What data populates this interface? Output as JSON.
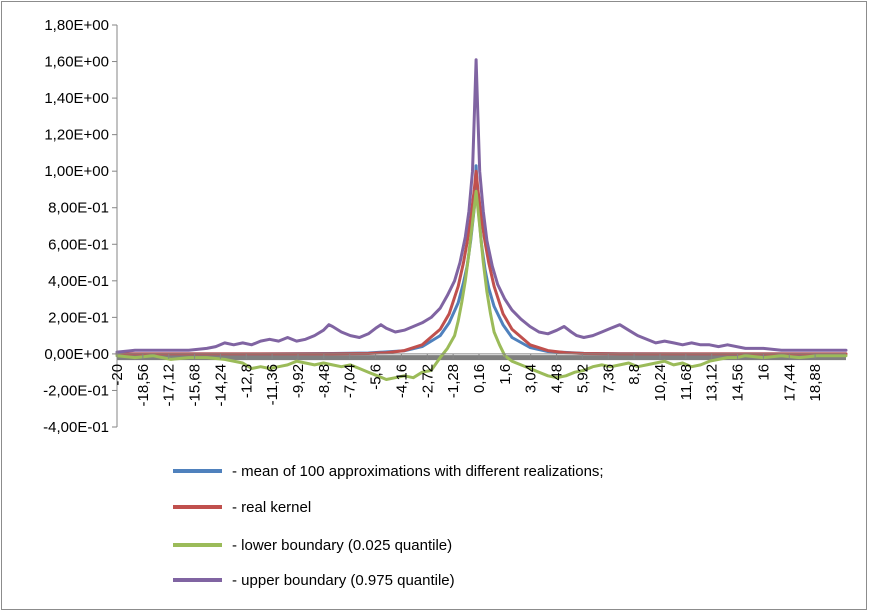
{
  "chart_data": {
    "type": "line",
    "title": "",
    "xlabel": "",
    "ylabel": "",
    "xlim": [
      -20,
      20.6
    ],
    "ylim": [
      -0.4,
      1.8
    ],
    "y_ticks": [
      {
        "value": 1.8,
        "label": "1,80E+00"
      },
      {
        "value": 1.6,
        "label": "1,60E+00"
      },
      {
        "value": 1.4,
        "label": "1,40E+00"
      },
      {
        "value": 1.2,
        "label": "1,20E+00"
      },
      {
        "value": 1.0,
        "label": "1,00E+00"
      },
      {
        "value": 0.8,
        "label": "8,00E-01"
      },
      {
        "value": 0.6,
        "label": "6,00E-01"
      },
      {
        "value": 0.4,
        "label": "4,00E-01"
      },
      {
        "value": 0.2,
        "label": "2,00E-01"
      },
      {
        "value": 0.0,
        "label": "0,00E+00"
      },
      {
        "value": -0.2,
        "label": "-2,00E-01"
      },
      {
        "value": -0.4,
        "label": "-4,00E-01"
      }
    ],
    "x_ticks": [
      {
        "value": -20,
        "label": "-20"
      },
      {
        "value": -18.56,
        "label": "-18,56"
      },
      {
        "value": -17.12,
        "label": "-17,12"
      },
      {
        "value": -15.68,
        "label": "-15,68"
      },
      {
        "value": -14.24,
        "label": "-14,24"
      },
      {
        "value": -12.8,
        "label": "-12,8"
      },
      {
        "value": -11.36,
        "label": "-11,36"
      },
      {
        "value": -9.92,
        "label": "-9,92"
      },
      {
        "value": -8.48,
        "label": "-8,48"
      },
      {
        "value": -7.04,
        "label": "-7,04"
      },
      {
        "value": -5.6,
        "label": "-5,6"
      },
      {
        "value": -4.16,
        "label": "-4,16"
      },
      {
        "value": -2.72,
        "label": "-2,72"
      },
      {
        "value": -1.28,
        "label": "-1,28"
      },
      {
        "value": 0.16,
        "label": "0,16"
      },
      {
        "value": 1.6,
        "label": "1,6"
      },
      {
        "value": 3.04,
        "label": "3,04"
      },
      {
        "value": 4.48,
        "label": "4,48"
      },
      {
        "value": 5.92,
        "label": "5,92"
      },
      {
        "value": 7.36,
        "label": "7,36"
      },
      {
        "value": 8.8,
        "label": "8,8"
      },
      {
        "value": 10.24,
        "label": "10,24"
      },
      {
        "value": 11.68,
        "label": "11,68"
      },
      {
        "value": 13.12,
        "label": "13,12"
      },
      {
        "value": 14.56,
        "label": "14,56"
      },
      {
        "value": 16,
        "label": "16"
      },
      {
        "value": 17.44,
        "label": "17,44"
      },
      {
        "value": 18.88,
        "label": "18,88"
      }
    ],
    "series": [
      {
        "name": "- mean of 100 approximations with different realizations;",
        "color": "#4f81bd",
        "x": [
          -20,
          -16,
          -12,
          -8,
          -6,
          -4,
          -3,
          -2,
          -1.5,
          -1,
          -0.7,
          -0.5,
          -0.3,
          -0.1,
          0,
          0.1,
          0.3,
          0.5,
          0.7,
          1,
          1.5,
          2,
          3,
          4,
          6,
          8,
          12,
          16,
          20.6
        ],
        "y": [
          0,
          0,
          0,
          0.002,
          0.005,
          0.017,
          0.04,
          0.1,
          0.17,
          0.28,
          0.39,
          0.48,
          0.62,
          0.8,
          1.03,
          0.82,
          0.6,
          0.46,
          0.36,
          0.26,
          0.16,
          0.09,
          0.035,
          0.013,
          0.003,
          0.001,
          0,
          0,
          0
        ]
      },
      {
        "name": "- real kernel",
        "color": "#c0504d",
        "x": [
          -20,
          -14,
          -10,
          -8,
          -6,
          -5,
          -4,
          -3,
          -2,
          -1.5,
          -1,
          -0.7,
          -0.5,
          -0.3,
          -0.1,
          0,
          0.1,
          0.3,
          0.5,
          0.7,
          1,
          1.5,
          2,
          3,
          4,
          5,
          6,
          8,
          10,
          14,
          20.6
        ],
        "y": [
          0,
          0,
          0,
          0.0003,
          0.0025,
          0.0067,
          0.018,
          0.05,
          0.135,
          0.22,
          0.37,
          0.5,
          0.61,
          0.74,
          0.9,
          1.0,
          0.9,
          0.74,
          0.61,
          0.5,
          0.37,
          0.22,
          0.135,
          0.05,
          0.018,
          0.0067,
          0.0025,
          0.0003,
          0,
          0,
          0
        ]
      },
      {
        "name": "- lower boundary (0.025 quantile)",
        "color": "#9bbb59",
        "x": [
          -20,
          -19,
          -18,
          -17,
          -16,
          -15,
          -14,
          -13,
          -12.5,
          -12,
          -11.5,
          -11,
          -10.5,
          -10,
          -9.5,
          -9,
          -8.5,
          -8,
          -7.5,
          -7,
          -6.5,
          -6,
          -5.5,
          -5,
          -4.5,
          -4,
          -3.5,
          -3,
          -2.5,
          -2,
          -1.6,
          -1.2,
          -1,
          -0.8,
          -0.6,
          -0.4,
          -0.2,
          0,
          0.2,
          0.4,
          0.6,
          0.8,
          1,
          1.3,
          1.6,
          2,
          2.5,
          3,
          3.5,
          4,
          4.5,
          5,
          5.5,
          6,
          6.5,
          7,
          7.5,
          8,
          8.5,
          9,
          9.5,
          10,
          10.5,
          11,
          11.5,
          12,
          12.5,
          13,
          13.5,
          14,
          14.5,
          15,
          16,
          17,
          18,
          19,
          20,
          20.6
        ],
        "y": [
          -0.01,
          -0.02,
          -0.01,
          -0.03,
          -0.02,
          -0.02,
          -0.03,
          -0.05,
          -0.08,
          -0.07,
          -0.08,
          -0.07,
          -0.06,
          -0.04,
          -0.05,
          -0.06,
          -0.05,
          -0.06,
          -0.07,
          -0.06,
          -0.08,
          -0.1,
          -0.12,
          -0.14,
          -0.13,
          -0.12,
          -0.13,
          -0.1,
          -0.09,
          -0.02,
          0.03,
          0.1,
          0.18,
          0.28,
          0.4,
          0.55,
          0.72,
          0.89,
          0.7,
          0.5,
          0.34,
          0.22,
          0.12,
          0.05,
          -0.01,
          -0.04,
          -0.06,
          -0.08,
          -0.1,
          -0.12,
          -0.13,
          -0.12,
          -0.1,
          -0.09,
          -0.07,
          -0.06,
          -0.07,
          -0.06,
          -0.05,
          -0.07,
          -0.06,
          -0.05,
          -0.04,
          -0.06,
          -0.05,
          -0.07,
          -0.06,
          -0.04,
          -0.03,
          -0.02,
          -0.02,
          -0.01,
          -0.02,
          -0.01,
          -0.02,
          -0.01,
          -0.01,
          -0.01
        ]
      },
      {
        "name": "- upper boundary (0.975 quantile)",
        "color": "#8064a2",
        "x": [
          -20,
          -19,
          -18,
          -17,
          -16,
          -15,
          -14.5,
          -14,
          -13.5,
          -13,
          -12.5,
          -12,
          -11.5,
          -11,
          -10.5,
          -10,
          -9.5,
          -9,
          -8.5,
          -8.2,
          -8,
          -7.5,
          -7,
          -6.5,
          -6,
          -5.6,
          -5.3,
          -5,
          -4.5,
          -4,
          -3.5,
          -3,
          -2.5,
          -2,
          -1.6,
          -1.2,
          -0.9,
          -0.6,
          -0.4,
          -0.2,
          -0.1,
          0,
          0.1,
          0.2,
          0.4,
          0.6,
          0.9,
          1.2,
          1.6,
          2,
          2.5,
          3,
          3.5,
          4,
          4.5,
          4.9,
          5.3,
          5.6,
          6,
          6.5,
          7,
          7.5,
          8,
          8.5,
          9,
          9.5,
          10,
          10.5,
          11,
          11.5,
          12,
          12.5,
          13,
          13.5,
          14,
          15,
          16,
          17,
          18,
          19,
          20,
          20.6
        ],
        "y": [
          0.01,
          0.02,
          0.02,
          0.02,
          0.02,
          0.03,
          0.04,
          0.06,
          0.05,
          0.06,
          0.05,
          0.07,
          0.08,
          0.07,
          0.09,
          0.07,
          0.08,
          0.1,
          0.13,
          0.16,
          0.15,
          0.12,
          0.1,
          0.09,
          0.11,
          0.14,
          0.16,
          0.14,
          0.12,
          0.13,
          0.15,
          0.17,
          0.2,
          0.25,
          0.32,
          0.4,
          0.5,
          0.64,
          0.78,
          1.0,
          1.3,
          1.61,
          1.3,
          1.0,
          0.78,
          0.62,
          0.48,
          0.38,
          0.3,
          0.24,
          0.19,
          0.15,
          0.12,
          0.11,
          0.13,
          0.15,
          0.12,
          0.1,
          0.09,
          0.1,
          0.12,
          0.14,
          0.16,
          0.13,
          0.1,
          0.08,
          0.06,
          0.07,
          0.06,
          0.05,
          0.06,
          0.05,
          0.05,
          0.04,
          0.05,
          0.03,
          0.03,
          0.02,
          0.02,
          0.02,
          0.02,
          0.02
        ]
      }
    ],
    "baseline": {
      "value": -0.02,
      "color": "#7f7f7f"
    },
    "grid": false,
    "legend_position": "bottom"
  }
}
